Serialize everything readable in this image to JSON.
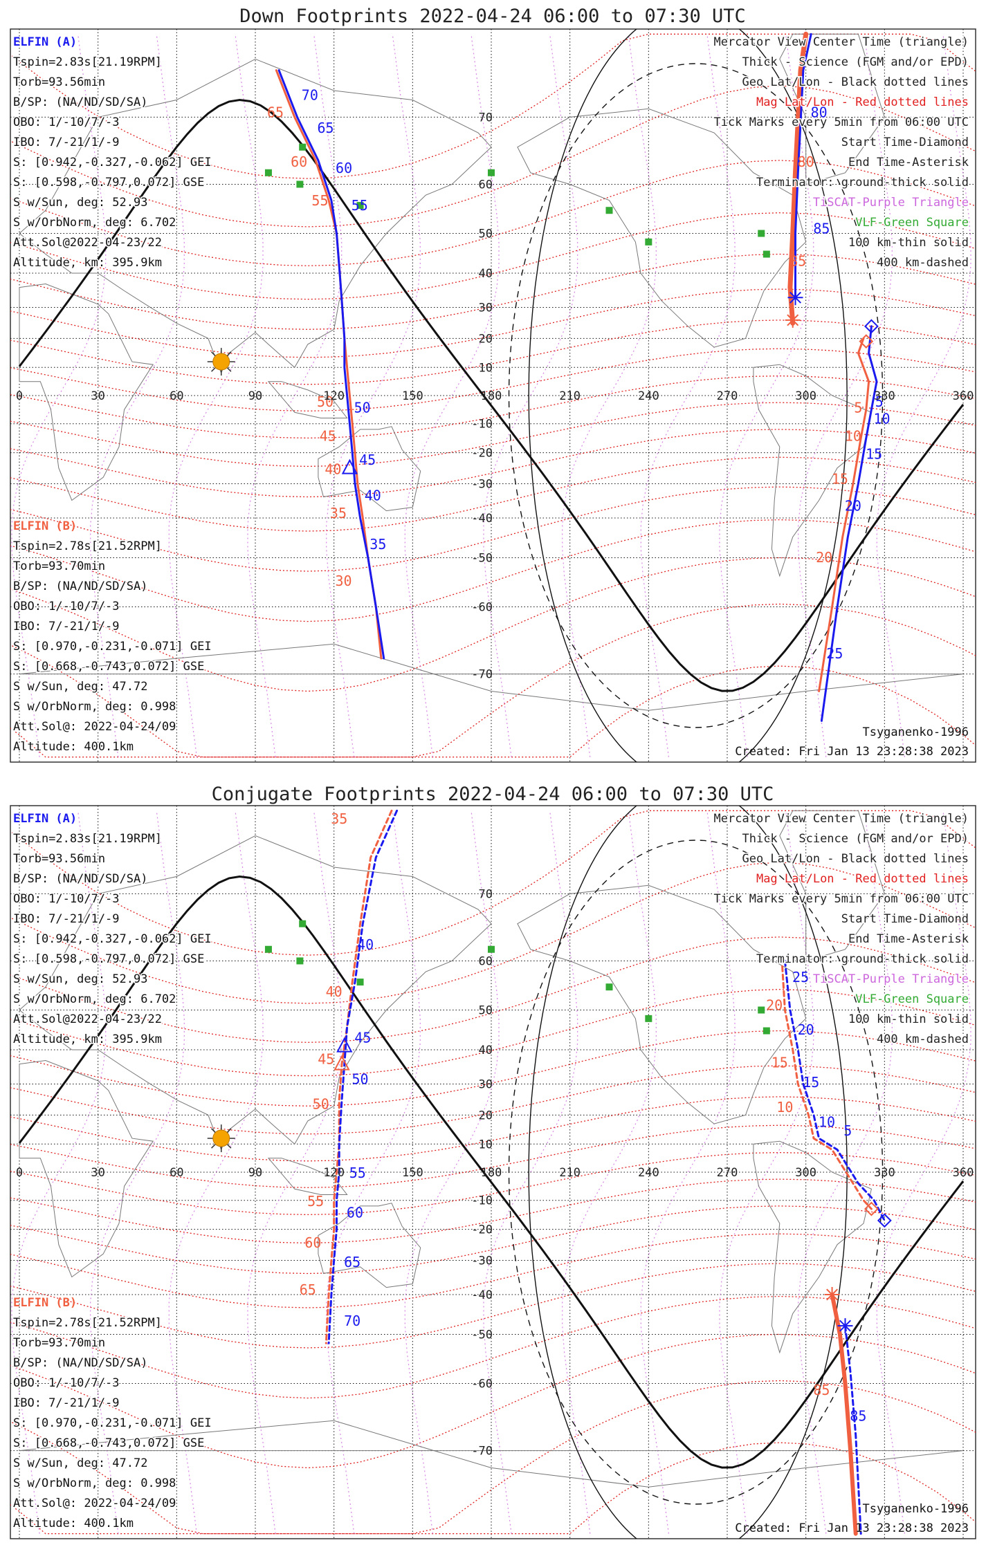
{
  "panels": [
    {
      "id": "down",
      "title": "Down Footprints 2022-04-24 06:00 to 07:30 UTC",
      "elfin_a": {
        "label": "ELFIN (A)",
        "lines": [
          "Tspin=2.83s[21.19RPM]",
          "Torb=93.56min",
          "B/SP: (NA/ND/SD/SA)",
          "OBO: 1/-10/7/-3",
          "IBO: 7/-21/1/-9",
          "S: [0.942,-0.327,-0.062] GEI",
          "S: [0.598,-0.797,0.072] GSE",
          "S w/Sun, deg: 52.93",
          "S w/OrbNorm, deg: 6.702",
          "Att.Sol@2022-04-23/22",
          "Altitude, km: 395.9km"
        ]
      },
      "elfin_b": {
        "label": "ELFIN (B)",
        "lines": [
          "Tspin=2.78s[21.52RPM]",
          "Torb=93.70min",
          "B/SP: (NA/ND/SD/SA)",
          "OBO: 1/-10/7/-3",
          "IBO: 7/-21/1/-9",
          "S: [0.970,-0.231,-0.071] GEI",
          "S: [0.668,-0.743,0.072] GSE",
          "S w/Sun, deg: 47.72",
          "S w/OrbNorm, deg: 0.998",
          "Att.Sol@: 2022-04-24/09",
          "Altitude: 400.1km"
        ]
      },
      "tracks": {
        "a": {
          "style": "solid",
          "points": [
            [
              100,
              74
            ],
            [
              109,
              70
            ],
            [
              117,
              64
            ],
            [
              122,
              57
            ],
            [
              124,
              52
            ],
            [
              125,
              47
            ],
            [
              126,
              43
            ],
            [
              128,
              38
            ],
            [
              130,
              33
            ],
            [
              132,
              28
            ]
          ],
          "ticks": [
            {
              "t": "70",
              "lon": 105,
              "lat": 72
            },
            {
              "t": "65",
              "lon": 111,
              "lat": 68
            },
            {
              "t": "60",
              "lon": 118,
              "lat": 62
            },
            {
              "t": "55",
              "lon": 124,
              "lat": 55
            },
            {
              "t": "50",
              "lon": 125,
              "lat": -6
            },
            {
              "t": "45",
              "lon": 127,
              "lat": -24
            },
            {
              "t": "40",
              "lon": 129,
              "lat": -35
            },
            {
              "t": "35",
              "lon": 131,
              "lat": -48
            }
          ]
        },
        "b": {
          "style": "solid",
          "points": [
            [
              98,
              75
            ],
            [
              107,
              70
            ],
            [
              116,
              64
            ],
            [
              121,
              57
            ],
            [
              123,
              52
            ],
            [
              124,
              47
            ],
            [
              125,
              42
            ],
            [
              127,
              37
            ],
            [
              129,
              32
            ],
            [
              131,
              27
            ]
          ],
          "ticks": [
            {
              "t": "65",
              "lon": 104,
              "lat": 70
            },
            {
              "t": "60",
              "lon": 113,
              "lat": 63
            },
            {
              "t": "55",
              "lon": 121,
              "lat": 56
            },
            {
              "t": "50",
              "lon": 123,
              "lat": -4
            },
            {
              "t": "45",
              "lon": 124,
              "lat": -16
            },
            {
              "t": "40",
              "lon": 126,
              "lat": -27
            },
            {
              "t": "35",
              "lon": 128,
              "lat": -40
            },
            {
              "t": "30",
              "lon": 130,
              "lat": -56
            }
          ]
        }
      },
      "markers": [
        {
          "kind": "triangle",
          "lon": 126,
          "lat": -25,
          "color": "#1a1aee"
        },
        {
          "kind": "diamond",
          "lon": 325,
          "lat": 24,
          "color": "#1a1aee"
        },
        {
          "kind": "diamond",
          "lon": 323,
          "lat": 19,
          "color": "#f06040"
        },
        {
          "kind": "asterisk",
          "lon": 296,
          "lat": 33,
          "color": "#1a1aee"
        },
        {
          "kind": "asterisk",
          "lon": 295,
          "lat": 26,
          "color": "#f06040"
        }
      ]
    },
    {
      "id": "conjugate",
      "title": "Conjugate Footprints 2022-04-24 06:00 to 07:30 UTC",
      "elfin_a": {
        "label": "ELFIN (A)",
        "lines": [
          "Tspin=2.83s[21.19RPM]",
          "Torb=93.56min",
          "B/SP: (NA/ND/SD/SA)",
          "OBO: 1/-10/7/-3",
          "IBO: 7/-21/1/-9",
          "S: [0.942,-0.327,-0.062] GEI",
          "S: [0.598,-0.797,0.072] GSE",
          "S w/Sun, deg: 52.93",
          "S w/OrbNorm, deg: 6.702",
          "Att.Sol@2022-04-23/22",
          "Altitude, km: 395.9km"
        ]
      },
      "elfin_b": {
        "label": "ELFIN (B)",
        "lines": [
          "Tspin=2.78s[21.52RPM]",
          "Torb=93.70min",
          "B/SP: (NA/ND/SD/SA)",
          "OBO: 1/-10/7/-3",
          "IBO: 7/-21/1/-9",
          "S: [0.970,-0.231,-0.071] GEI",
          "S: [0.668,-0.743,0.072] GSE",
          "S w/Sun, deg: 47.72",
          "S w/OrbNorm, deg: 0.998",
          "Att.Sol@: 2022-04-24/09",
          "Altitude: 400.1km"
        ]
      },
      "markers": [
        {
          "kind": "triangle",
          "lon": 124,
          "lat": 41,
          "color": "#1a1aee"
        },
        {
          "kind": "triangle",
          "lon": 123,
          "lat": 36,
          "color": "#f06040"
        },
        {
          "kind": "diamond",
          "lon": 325,
          "lat": -13,
          "color": "#f06040"
        },
        {
          "kind": "diamond",
          "lon": 330,
          "lat": -17,
          "color": "#1a1aee"
        },
        {
          "kind": "asterisk",
          "lon": 310,
          "lat": -40,
          "color": "#f06040"
        },
        {
          "kind": "asterisk",
          "lon": 315,
          "lat": -48,
          "color": "#1a1aee"
        }
      ]
    }
  ],
  "legend": [
    {
      "text": "Mercator View Center Time (triangle)",
      "color": "#222222"
    },
    {
      "text": "Thick - Science (FGM and/or EPD)",
      "color": "#222222"
    },
    {
      "text": "Geo Lat/Lon - Black dotted lines",
      "color": "#222222"
    },
    {
      "text": "Mag Lat/Lon - Red dotted lines",
      "color": "#e02020"
    },
    {
      "text": "Tick Marks every 5min from 06:00 UTC",
      "color": "#222222"
    },
    {
      "text": "Start Time-Diamond",
      "color": "#222222"
    },
    {
      "text": "End Time-Asterisk",
      "color": "#222222"
    },
    {
      "text": "Terminator: ground-thick solid",
      "color": "#222222"
    },
    {
      "text": "TiSCAT-Purple Triangle",
      "color": "#cc66dd"
    },
    {
      "text": "VLF-Green Square",
      "color": "#33aa33"
    },
    {
      "text": "100 km-thin solid",
      "color": "#222222"
    },
    {
      "text": "400 km-dashed",
      "color": "#222222"
    }
  ],
  "footer": {
    "model": "Tsyganenko-1996",
    "created": "Created: Fri Jan 13 23:28:38 2023"
  },
  "lon_labels": [
    "0",
    "30",
    "60",
    "90",
    "120",
    "150",
    "180",
    "210",
    "240",
    "270",
    "300",
    "330",
    "360"
  ],
  "lat_labels": [
    "70",
    "60",
    "50",
    "40",
    "30",
    "20",
    "10",
    "-10",
    "-20",
    "-30",
    "-40",
    "-50",
    "-60",
    "-70"
  ],
  "colors": {
    "elfin_a": "#1a1aee",
    "elfin_b": "#f06040",
    "mag_grid": "#e02020",
    "geo_grid": "#111111",
    "vlf": "#33aa33",
    "tiscat": "#cc66dd",
    "sun": "#f5a300"
  }
}
